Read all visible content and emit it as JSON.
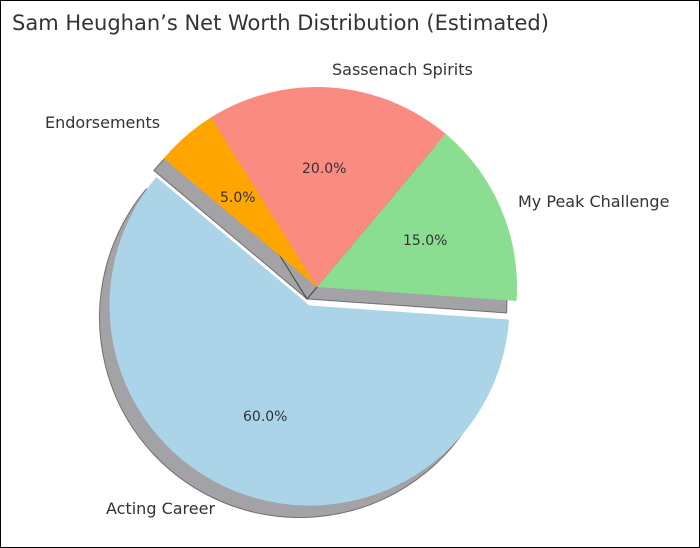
{
  "chart_data": {
    "type": "pie",
    "title": "Sam Heughan’s Net Worth Distribution (Estimated)",
    "categories": [
      "Acting Career",
      "My Peak Challenge",
      "Sassenach Spirits",
      "Endorsements"
    ],
    "values": [
      60,
      15,
      20,
      5
    ],
    "percent_labels": [
      "60.0%",
      "15.0%",
      "20.0%",
      "5.0%"
    ],
    "colors": [
      "#abd4e8",
      "#8bdd91",
      "#fa8b80",
      "#ffa500"
    ],
    "explode": [
      0.1,
      0,
      0,
      0
    ],
    "startangle": 140,
    "shadow": true,
    "autopct": "%1.1f%%"
  },
  "slices": [
    {
      "label": "Acting Career",
      "pct": "60.0%"
    },
    {
      "label": "My Peak Challenge",
      "pct": "15.0%"
    },
    {
      "label": "Sassenach Spirits",
      "pct": "20.0%"
    },
    {
      "label": "Endorsements",
      "pct": "5.0%"
    }
  ]
}
